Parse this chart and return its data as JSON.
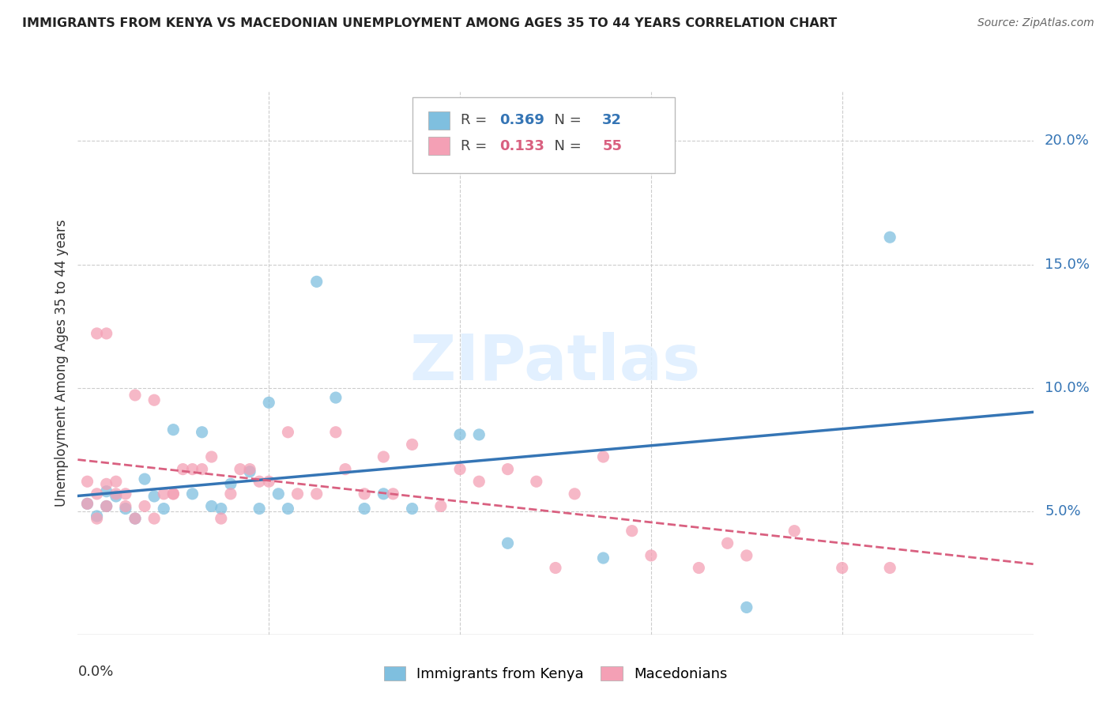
{
  "title": "IMMIGRANTS FROM KENYA VS MACEDONIAN UNEMPLOYMENT AMONG AGES 35 TO 44 YEARS CORRELATION CHART",
  "source": "Source: ZipAtlas.com",
  "ylabel": "Unemployment Among Ages 35 to 44 years",
  "legend1_label": "Immigrants from Kenya",
  "legend2_label": "Macedonians",
  "r1": "0.369",
  "n1": "32",
  "r2": "0.133",
  "n2": "55",
  "blue_color": "#7fbfdf",
  "pink_color": "#f4a0b5",
  "blue_line_color": "#3575b5",
  "pink_line_color": "#d96080",
  "kenya_x": [
    0.001,
    0.002,
    0.003,
    0.003,
    0.004,
    0.005,
    0.006,
    0.007,
    0.008,
    0.009,
    0.01,
    0.012,
    0.013,
    0.014,
    0.015,
    0.016,
    0.018,
    0.019,
    0.02,
    0.021,
    0.022,
    0.025,
    0.027,
    0.03,
    0.032,
    0.035,
    0.04,
    0.042,
    0.045,
    0.055,
    0.07,
    0.085
  ],
  "kenya_y": [
    0.053,
    0.048,
    0.058,
    0.052,
    0.056,
    0.051,
    0.047,
    0.063,
    0.056,
    0.051,
    0.083,
    0.057,
    0.082,
    0.052,
    0.051,
    0.061,
    0.066,
    0.051,
    0.094,
    0.057,
    0.051,
    0.143,
    0.096,
    0.051,
    0.057,
    0.051,
    0.081,
    0.081,
    0.037,
    0.031,
    0.011,
    0.161
  ],
  "mac_x": [
    0.001,
    0.001,
    0.002,
    0.002,
    0.003,
    0.003,
    0.004,
    0.004,
    0.005,
    0.005,
    0.006,
    0.007,
    0.008,
    0.009,
    0.01,
    0.011,
    0.012,
    0.013,
    0.014,
    0.015,
    0.016,
    0.017,
    0.018,
    0.019,
    0.02,
    0.022,
    0.023,
    0.025,
    0.027,
    0.028,
    0.03,
    0.032,
    0.033,
    0.035,
    0.038,
    0.04,
    0.042,
    0.045,
    0.048,
    0.05,
    0.052,
    0.055,
    0.058,
    0.06,
    0.065,
    0.068,
    0.07,
    0.075,
    0.08,
    0.085,
    0.002,
    0.003,
    0.006,
    0.008,
    0.01
  ],
  "mac_y": [
    0.062,
    0.053,
    0.057,
    0.047,
    0.061,
    0.052,
    0.057,
    0.062,
    0.052,
    0.057,
    0.047,
    0.052,
    0.047,
    0.057,
    0.057,
    0.067,
    0.067,
    0.067,
    0.072,
    0.047,
    0.057,
    0.067,
    0.067,
    0.062,
    0.062,
    0.082,
    0.057,
    0.057,
    0.082,
    0.067,
    0.057,
    0.072,
    0.057,
    0.077,
    0.052,
    0.067,
    0.062,
    0.067,
    0.062,
    0.027,
    0.057,
    0.072,
    0.042,
    0.032,
    0.027,
    0.037,
    0.032,
    0.042,
    0.027,
    0.027,
    0.122,
    0.122,
    0.097,
    0.095,
    0.057
  ],
  "xlim": [
    0.0,
    0.1
  ],
  "ylim": [
    0.0,
    0.22
  ],
  "watermark": "ZIPatlas",
  "background_color": "#ffffff",
  "grid_color": "#cccccc",
  "grid_yticks": [
    0.05,
    0.1,
    0.15,
    0.2
  ],
  "grid_xticks": [
    0.0,
    0.02,
    0.04,
    0.06,
    0.08,
    0.1
  ]
}
